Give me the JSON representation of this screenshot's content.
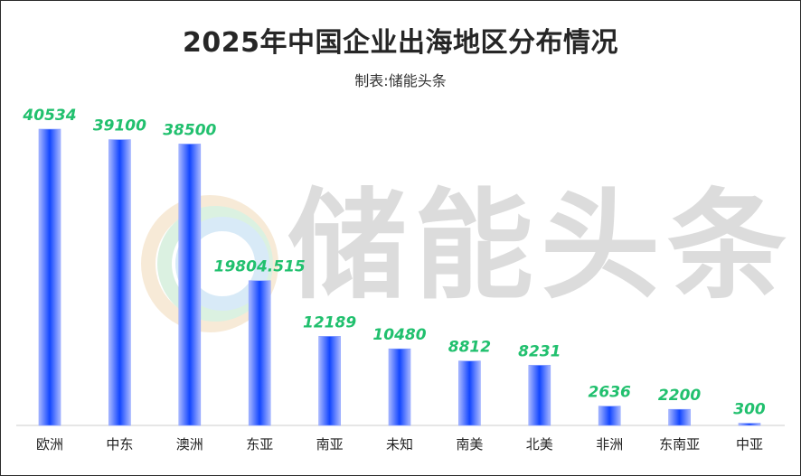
{
  "title": "2025年中国企业出海地区分布情况",
  "subtitle": "制表:储能头条",
  "watermark": "储能头条",
  "colors": {
    "bar_edge": "#a9b8ff",
    "bar_core": "#1246ff",
    "value_label": "#21c06e",
    "axis": "#cccccc",
    "tick_label": "#222222",
    "watermark_text": "#d4d4d4"
  },
  "chart_data": {
    "type": "bar",
    "title": "2025年中国企业出海地区分布情况",
    "subtitle": "制表:储能头条",
    "categories": [
      "欧洲",
      "中东",
      "澳洲",
      "东亚",
      "南亚",
      "未知",
      "南美",
      "北美",
      "非洲",
      "东南亚",
      "中亚"
    ],
    "values": [
      40534,
      39100,
      38500,
      19804.515,
      12189,
      10480,
      8812,
      8231,
      2636,
      2200,
      300
    ],
    "value_labels": [
      "40534",
      "39100",
      "38500",
      "19804.515",
      "12189",
      "10480",
      "8812",
      "8231",
      "2636",
      "2200",
      "300"
    ],
    "xlabel": "",
    "ylabel": "",
    "ylim": [
      0,
      40534
    ],
    "grid": false,
    "legend": "none"
  }
}
